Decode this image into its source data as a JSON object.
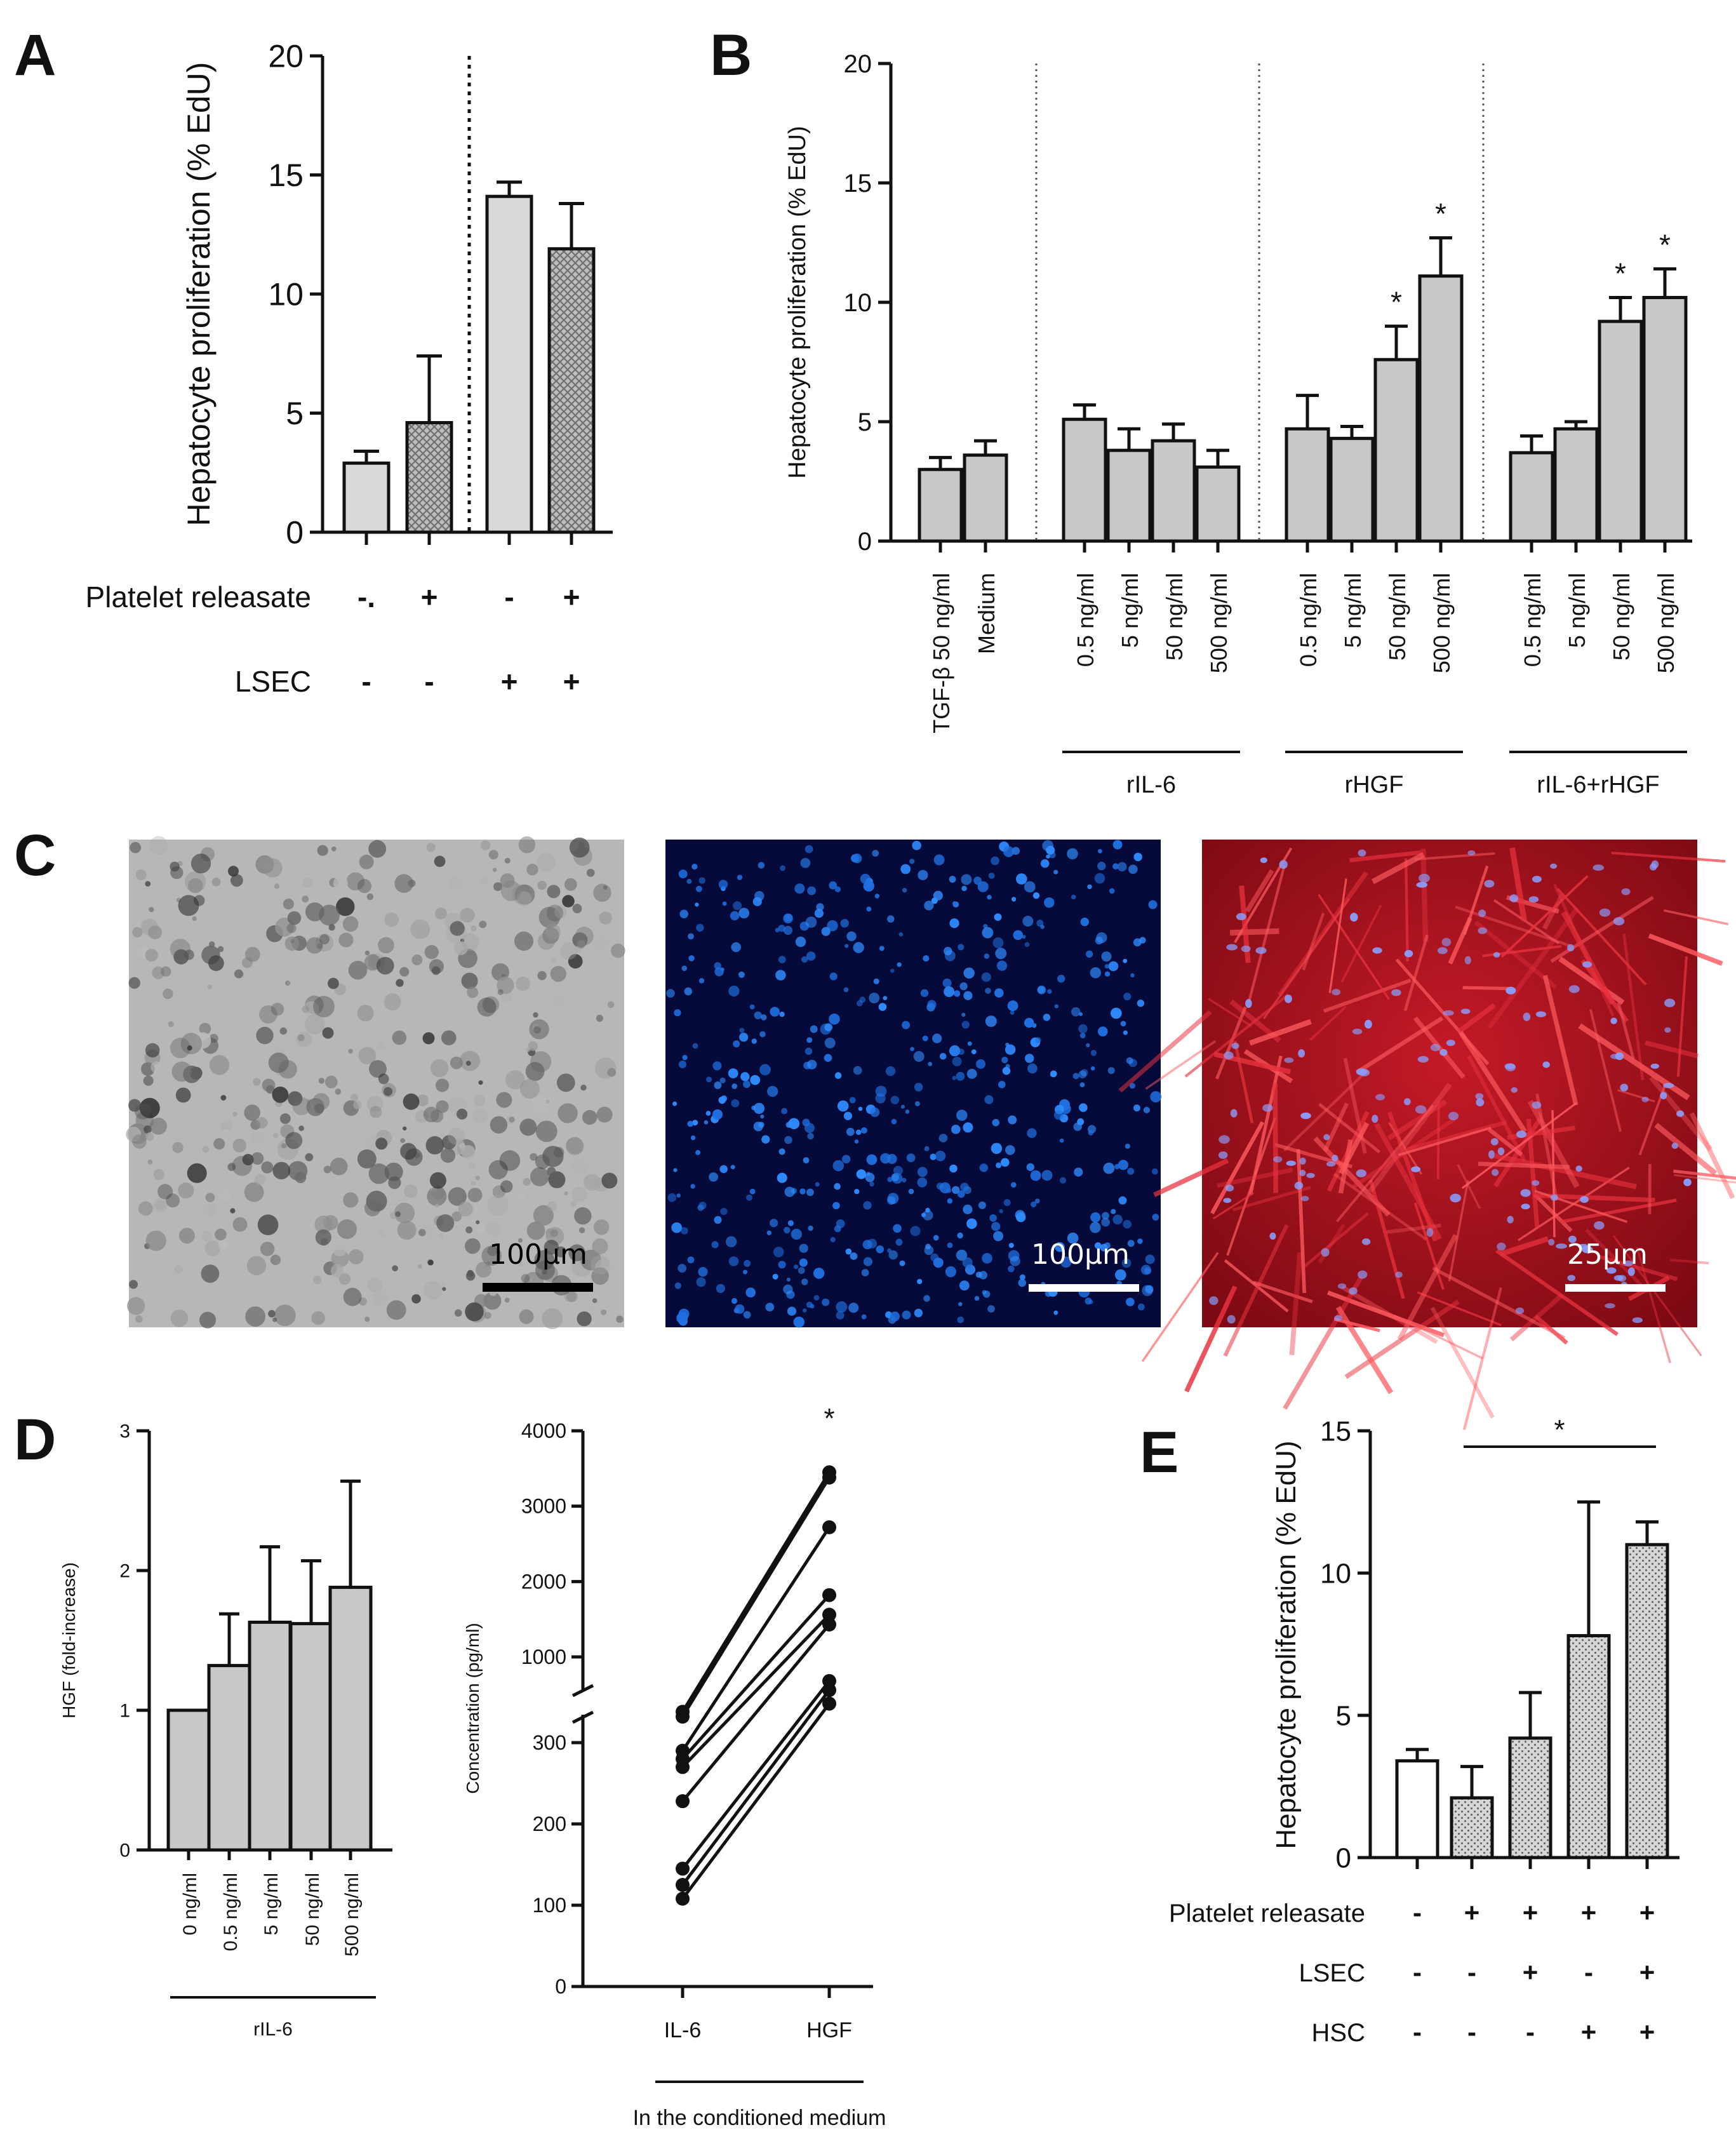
{
  "figure": {
    "panel_letters": [
      "A",
      "B",
      "C",
      "D",
      "E"
    ]
  },
  "colors": {
    "bar_light": "#d9d9d9",
    "bar_gray": "#c8c8c8",
    "bar_white": "#ffffff",
    "axis": "#111111",
    "micro_brightfield": "#b9b9b9",
    "micro_dapi": "#070b3c",
    "micro_red": "#a01020"
  },
  "chart_data": [
    {
      "id": "A",
      "type": "bar",
      "ylabel": "Hepatocyte proliferation (% EdU)",
      "ylim": [
        0,
        20
      ],
      "yticks": [
        0,
        5,
        10,
        15,
        20
      ],
      "bars": [
        {
          "value": 2.9,
          "error": 0.5,
          "fill": "light"
        },
        {
          "value": 4.6,
          "error": 2.8,
          "fill": "hatched"
        },
        {
          "value": 14.1,
          "error": 0.6,
          "fill": "light"
        },
        {
          "value": 11.9,
          "error": 1.9,
          "fill": "hatched"
        }
      ],
      "condition_rows": [
        {
          "label": "Platelet releasate",
          "signs": [
            "-.",
            "+",
            "-",
            "+"
          ]
        },
        {
          "label": "LSEC",
          "signs": [
            "-",
            "-",
            "+",
            "+"
          ]
        }
      ],
      "divider_after": 2
    },
    {
      "id": "B",
      "type": "bar",
      "ylabel": "Hepatocyte proliferation (% EdU)",
      "ylim": [
        0,
        20
      ],
      "yticks": [
        0,
        5,
        10,
        15,
        20
      ],
      "categories": [
        "TGF-β 50 ng/ml",
        "Medium",
        "0.5 ng/ml",
        "5 ng/ml",
        "50 ng/ml",
        "500 ng/ml",
        "0.5 ng/ml",
        "5 ng/ml",
        "50 ng/ml",
        "500 ng/ml",
        "0.5 ng/ml",
        "5 ng/ml",
        "50 ng/ml",
        "500 ng/ml"
      ],
      "values": [
        3.0,
        3.6,
        5.1,
        3.8,
        4.2,
        3.1,
        4.7,
        4.3,
        7.6,
        11.1,
        3.7,
        4.7,
        9.2,
        10.2
      ],
      "errors": [
        0.5,
        0.6,
        0.6,
        0.9,
        0.7,
        0.7,
        1.4,
        0.5,
        1.4,
        1.6,
        0.7,
        0.3,
        1.0,
        1.2
      ],
      "significant": [
        false,
        false,
        false,
        false,
        false,
        false,
        false,
        false,
        true,
        true,
        false,
        false,
        true,
        true
      ],
      "star": "*",
      "groups": [
        {
          "label": "rIL-6",
          "from": 2,
          "to": 5
        },
        {
          "label": "rHGF",
          "from": 6,
          "to": 9
        },
        {
          "label": "rIL-6+rHGF",
          "from": 10,
          "to": 13
        }
      ]
    },
    {
      "id": "D1",
      "type": "bar",
      "ylabel": "HGF (fold-increase)",
      "ylim": [
        0,
        3
      ],
      "yticks": [
        0,
        1,
        2,
        3
      ],
      "categories": [
        "0 ng/ml",
        "0.5 ng/ml",
        "5 ng/ml",
        "50 ng/ml",
        "500 ng/ml"
      ],
      "values": [
        1.0,
        1.32,
        1.63,
        1.62,
        1.88
      ],
      "errors": [
        0,
        0.37,
        0.54,
        0.45,
        0.76
      ],
      "group": {
        "label": "rIL-6"
      }
    },
    {
      "id": "D2",
      "type": "scatter",
      "ylabel": "Concentration (pg/ml)",
      "categories": [
        "IL-6",
        "HGF"
      ],
      "lower_ticks": [
        0,
        100,
        200,
        300
      ],
      "upper_ticks": [
        1000,
        2000,
        3000,
        4000
      ],
      "lower_range": [
        0,
        350
      ],
      "upper_range": [
        250,
        4000
      ],
      "pairs": [
        {
          "il6": 338,
          "hgf": 3450
        },
        {
          "il6": 332,
          "hgf": 3380
        },
        {
          "il6": 290,
          "hgf": 2720
        },
        {
          "il6": 280,
          "hgf": 1820
        },
        {
          "il6": 270,
          "hgf": 1560
        },
        {
          "il6": 228,
          "hgf": 1430
        },
        {
          "il6": 145,
          "hgf": 680
        },
        {
          "il6": 125,
          "hgf": 560
        },
        {
          "il6": 108,
          "hgf": 380
        }
      ],
      "star": "*",
      "xlabel": "In the conditioned medium"
    },
    {
      "id": "E",
      "type": "bar",
      "ylabel": "Hepatocyte proliferation (% EdU)",
      "ylim": [
        0,
        15
      ],
      "yticks": [
        0,
        5,
        10,
        15
      ],
      "bars": [
        {
          "value": 3.4,
          "error": 0.4,
          "fill": "white"
        },
        {
          "value": 2.1,
          "error": 1.1,
          "fill": "dotted"
        },
        {
          "value": 4.2,
          "error": 1.6,
          "fill": "dotted"
        },
        {
          "value": 7.8,
          "error": 4.7,
          "fill": "dotted"
        },
        {
          "value": 11.0,
          "error": 0.8,
          "fill": "dotted"
        }
      ],
      "significance": {
        "from": 1,
        "to": 4,
        "star": "*"
      },
      "condition_rows": [
        {
          "label": "Platelet releasate",
          "signs": [
            "-",
            "+",
            "+",
            "+",
            "+"
          ]
        },
        {
          "label": "LSEC",
          "signs": [
            "-",
            "-",
            "+",
            "-",
            "+"
          ]
        },
        {
          "label": "HSC",
          "signs": [
            "-",
            "-",
            "-",
            "+",
            "+"
          ]
        }
      ]
    }
  ],
  "micrographs": [
    {
      "name": "brightfield",
      "scale_label": "100µm"
    },
    {
      "name": "dapi",
      "scale_label": "100µm"
    },
    {
      "name": "red-stain",
      "scale_label": "25µm"
    }
  ]
}
